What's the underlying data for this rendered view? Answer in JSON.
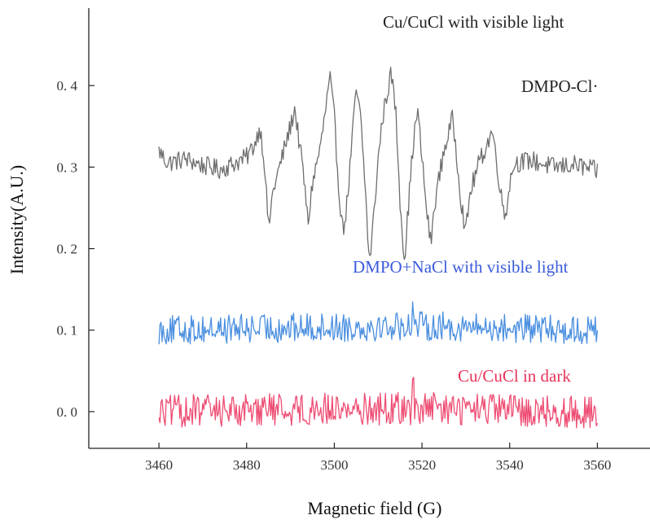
{
  "chart_data": {
    "type": "line",
    "title": "",
    "xlabel": "Magnetic field (G)",
    "ylabel": "Intensity(A.U.)",
    "xlim": [
      3444,
      3572
    ],
    "ylim": [
      -0.045,
      0.495
    ],
    "x_ticks": [
      3460,
      3480,
      3500,
      3520,
      3540,
      3560
    ],
    "x_tick_labels": [
      "3460",
      "3480",
      "3500",
      "3520",
      "3540",
      "3560"
    ],
    "y_ticks": [
      0.0,
      0.1,
      0.2,
      0.3,
      0.4
    ],
    "y_tick_labels": [
      "0. 0",
      "0. 1",
      "0. 2",
      "0. 3",
      "0. 4"
    ],
    "grid": false,
    "legend": "none",
    "annotations": [
      {
        "text": "Cu/CuCl with visible light",
        "color": "#222222"
      },
      {
        "text": "DMPO-Cl·",
        "color": "#222222"
      },
      {
        "text": "DMPO+NaCl with visible light",
        "color": "#3b5bdb"
      },
      {
        "text": "Cu/CuCl in dark",
        "color": "#e8345a"
      }
    ],
    "series": [
      {
        "color": "#6e6e6e",
        "baseline": 0.305,
        "noise_amplitude": 0.012,
        "x_range": [
          3460,
          3560
        ],
        "points": [
          [
            3460,
            0.32
          ],
          [
            3462,
            0.305
          ],
          [
            3466,
            0.31
          ],
          [
            3470,
            0.302
          ],
          [
            3474,
            0.297
          ],
          [
            3477,
            0.304
          ],
          [
            3480,
            0.312
          ],
          [
            3482,
            0.33
          ],
          [
            3483,
            0.35
          ],
          [
            3484,
            0.31
          ],
          [
            3485,
            0.225
          ],
          [
            3486,
            0.27
          ],
          [
            3488,
            0.31
          ],
          [
            3490,
            0.35
          ],
          [
            3491,
            0.372
          ],
          [
            3492,
            0.33
          ],
          [
            3493,
            0.29
          ],
          [
            3494,
            0.23
          ],
          [
            3495,
            0.28
          ],
          [
            3497,
            0.33
          ],
          [
            3498,
            0.37
          ],
          [
            3499,
            0.41
          ],
          [
            3500,
            0.36
          ],
          [
            3501,
            0.275
          ],
          [
            3502,
            0.22
          ],
          [
            3503,
            0.26
          ],
          [
            3504,
            0.33
          ],
          [
            3505,
            0.395
          ],
          [
            3506,
            0.36
          ],
          [
            3507,
            0.28
          ],
          [
            3508,
            0.18
          ],
          [
            3509,
            0.24
          ],
          [
            3510,
            0.31
          ],
          [
            3511,
            0.36
          ],
          [
            3512,
            0.39
          ],
          [
            3513,
            0.415
          ],
          [
            3514,
            0.37
          ],
          [
            3515,
            0.26
          ],
          [
            3516,
            0.185
          ],
          [
            3517,
            0.26
          ],
          [
            3518,
            0.33
          ],
          [
            3519,
            0.37
          ],
          [
            3520,
            0.31
          ],
          [
            3521,
            0.25
          ],
          [
            3522,
            0.205
          ],
          [
            3523,
            0.26
          ],
          [
            3525,
            0.32
          ],
          [
            3527,
            0.36
          ],
          [
            3528,
            0.31
          ],
          [
            3529,
            0.255
          ],
          [
            3530,
            0.22
          ],
          [
            3531,
            0.27
          ],
          [
            3533,
            0.305
          ],
          [
            3535,
            0.33
          ],
          [
            3536,
            0.345
          ],
          [
            3537,
            0.31
          ],
          [
            3538,
            0.265
          ],
          [
            3539,
            0.24
          ],
          [
            3540,
            0.28
          ],
          [
            3541,
            0.305
          ],
          [
            3545,
            0.308
          ],
          [
            3550,
            0.3
          ],
          [
            3555,
            0.303
          ],
          [
            3560,
            0.295
          ]
        ]
      },
      {
        "color": "#4a8fe0",
        "baseline": 0.1,
        "noise_amplitude": 0.018,
        "x_range": [
          3460,
          3560
        ],
        "points": [
          [
            3460,
            0.1
          ],
          [
            3518,
            0.135
          ],
          [
            3560,
            0.095
          ]
        ]
      },
      {
        "color": "#ee4d73",
        "baseline": 0.0,
        "noise_amplitude": 0.02,
        "x_range": [
          3460,
          3560
        ],
        "points": [
          [
            3460,
            0.0
          ],
          [
            3482,
            0.02
          ],
          [
            3518,
            0.025
          ],
          [
            3560,
            -0.005
          ]
        ]
      }
    ]
  }
}
